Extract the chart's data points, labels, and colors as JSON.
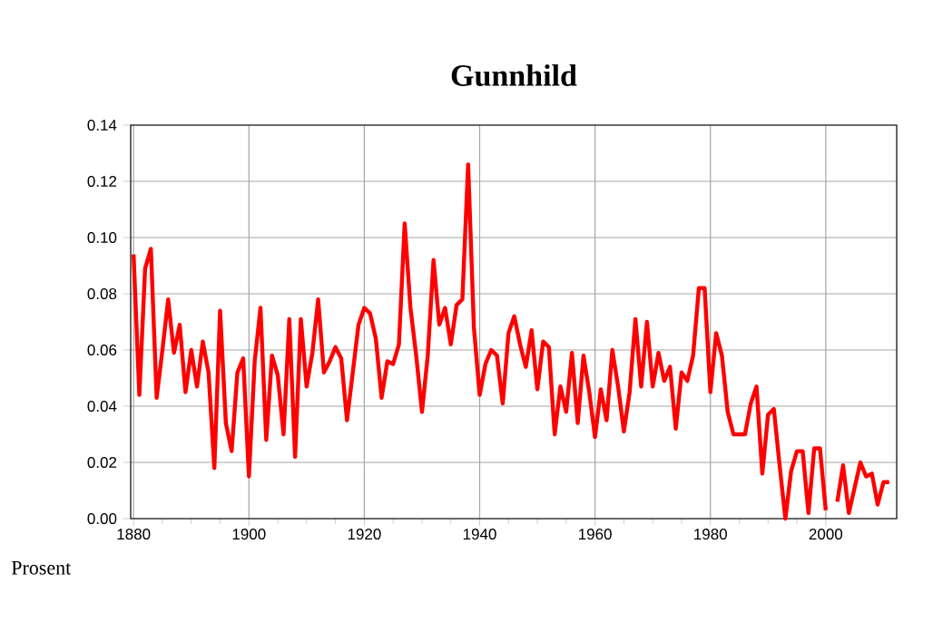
{
  "chart_data": {
    "type": "line",
    "title": "Gunnhild",
    "ylabel": "Prosent",
    "x": [
      1880,
      1881,
      1882,
      1883,
      1884,
      1885,
      1886,
      1887,
      1888,
      1889,
      1890,
      1891,
      1892,
      1893,
      1894,
      1895,
      1896,
      1897,
      1898,
      1899,
      1900,
      1901,
      1902,
      1903,
      1904,
      1905,
      1906,
      1907,
      1908,
      1909,
      1910,
      1911,
      1912,
      1913,
      1914,
      1915,
      1916,
      1917,
      1918,
      1919,
      1920,
      1921,
      1922,
      1923,
      1924,
      1925,
      1926,
      1927,
      1928,
      1929,
      1930,
      1931,
      1932,
      1933,
      1934,
      1935,
      1936,
      1937,
      1938,
      1939,
      1940,
      1941,
      1942,
      1943,
      1944,
      1945,
      1946,
      1947,
      1948,
      1949,
      1950,
      1951,
      1952,
      1953,
      1954,
      1955,
      1956,
      1957,
      1958,
      1959,
      1960,
      1961,
      1962,
      1963,
      1964,
      1965,
      1966,
      1967,
      1968,
      1969,
      1970,
      1971,
      1972,
      1973,
      1974,
      1975,
      1976,
      1977,
      1978,
      1979,
      1980,
      1981,
      1982,
      1983,
      1984,
      1985,
      1986,
      1987,
      1988,
      1989,
      1990,
      1991,
      1992,
      1993,
      1994,
      1995,
      1996,
      1997,
      1998,
      1999,
      2000,
      2001,
      2002,
      2003,
      2004,
      2005,
      2006,
      2007,
      2008,
      2009,
      2010,
      2011
    ],
    "series": [
      {
        "color": "#ff0000",
        "values": [
          0.094,
          0.044,
          0.089,
          0.096,
          0.043,
          0.06,
          0.078,
          0.059,
          0.069,
          0.045,
          0.06,
          0.047,
          0.063,
          0.052,
          0.018,
          0.074,
          0.034,
          0.024,
          0.052,
          0.057,
          0.015,
          0.056,
          0.075,
          0.028,
          0.058,
          0.051,
          0.03,
          0.071,
          0.022,
          0.071,
          0.047,
          0.059,
          0.078,
          0.052,
          0.056,
          0.061,
          0.057,
          0.035,
          0.052,
          0.069,
          0.075,
          0.073,
          0.064,
          0.043,
          0.056,
          0.055,
          0.062,
          0.105,
          0.075,
          0.058,
          0.038,
          0.058,
          0.092,
          0.069,
          0.075,
          0.062,
          0.076,
          0.078,
          0.126,
          0.068,
          0.044,
          0.055,
          0.06,
          0.058,
          0.041,
          0.066,
          0.072,
          0.062,
          0.054,
          0.067,
          0.046,
          0.063,
          0.061,
          0.03,
          0.047,
          0.038,
          0.059,
          0.034,
          0.058,
          0.045,
          0.029,
          0.046,
          0.035,
          0.06,
          0.047,
          0.031,
          0.045,
          0.071,
          0.047,
          0.07,
          0.047,
          0.059,
          0.049,
          0.054,
          0.032,
          0.052,
          0.049,
          0.058,
          0.082,
          0.082,
          0.045,
          0.066,
          0.058,
          0.038,
          0.03,
          0.03,
          0.03,
          0.041,
          0.047,
          0.016,
          0.037,
          0.039,
          0.019,
          0.0,
          0.017,
          0.024,
          0.024,
          0.002,
          0.025,
          0.025,
          0.003,
          null,
          0.006,
          0.019,
          0.002,
          0.011,
          0.02,
          0.015,
          0.016,
          0.005,
          0.013,
          0.013
        ]
      }
    ],
    "xlim": [
      1879.5,
      2012.3
    ],
    "ylim": [
      0,
      0.14
    ],
    "xticks": [
      1880,
      1900,
      1920,
      1940,
      1960,
      1980,
      2000
    ],
    "yticks": [
      {
        "value": 0,
        "label": "0.00"
      },
      {
        "value": 0.02,
        "label": "0.02"
      },
      {
        "value": 0.04,
        "label": "0.04"
      },
      {
        "value": 0.06,
        "label": "0.06"
      },
      {
        "value": 0.08,
        "label": "0.08"
      },
      {
        "value": 0.1,
        "label": "0.10"
      },
      {
        "value": 0.12,
        "label": "0.12"
      },
      {
        "value": 0.14,
        "label": "0.14"
      }
    ],
    "grid": true
  }
}
